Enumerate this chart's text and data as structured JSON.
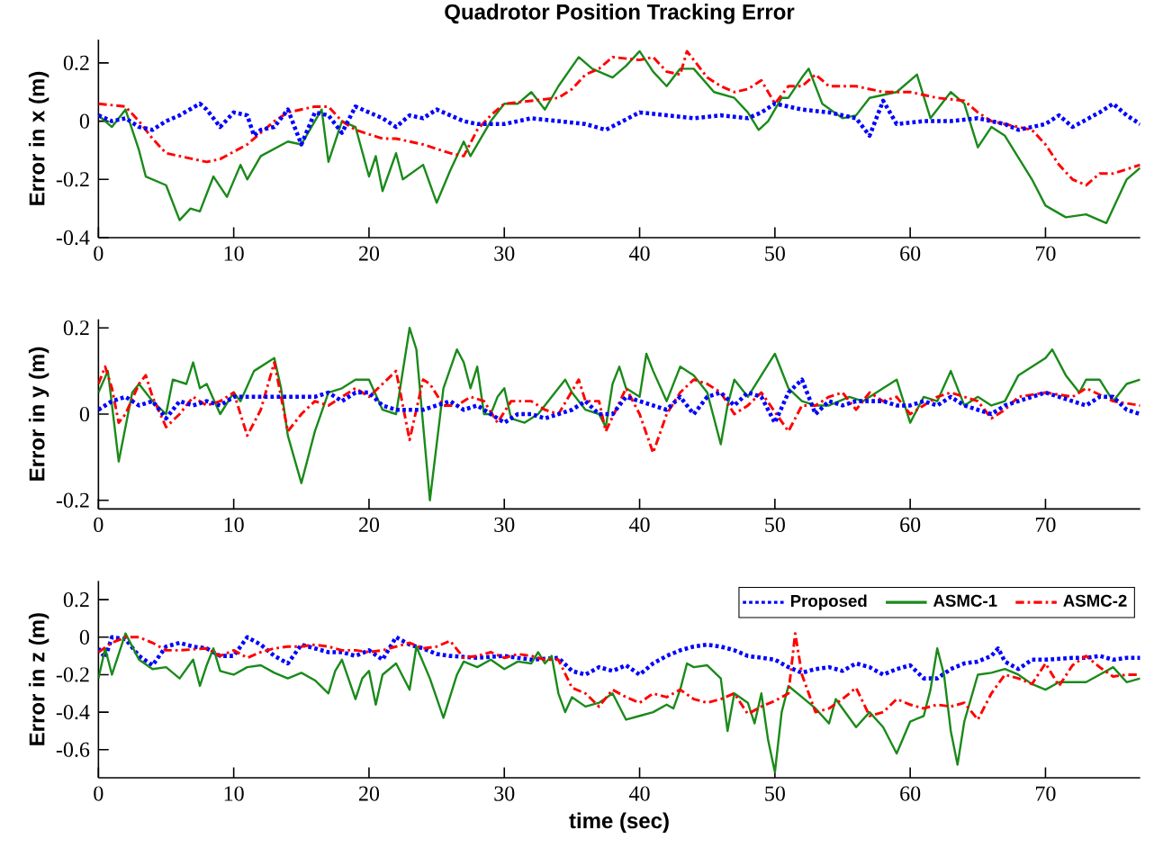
{
  "chart_data": [
    {
      "type": "line",
      "title": "Quadrotor Position Tracking Error",
      "ylabel": "Error in x (m)",
      "xlim": [
        0,
        77
      ],
      "ylim": [
        -0.4,
        0.28
      ],
      "xticks": [
        0,
        10,
        20,
        30,
        40,
        50,
        60,
        70
      ],
      "yticks": [
        -0.4,
        -0.2,
        0,
        0.2
      ],
      "series": [
        {
          "color": "#1a8a1a",
          "line_style": "solid",
          "x": [
            0,
            1,
            2,
            3,
            3.5,
            5,
            6,
            6.8,
            7.5,
            8.5,
            9.5,
            10.5,
            11,
            12,
            14,
            15,
            16.5,
            17,
            18,
            19,
            20,
            20.5,
            21,
            22,
            22.5,
            24,
            25,
            26,
            27,
            27.5,
            29,
            30,
            31,
            32,
            33,
            34,
            35.5,
            36.5,
            38,
            39,
            40,
            41,
            42,
            43,
            44,
            45.5,
            47,
            48,
            48.8,
            49.5,
            50.5,
            51,
            52,
            52.5,
            53.5,
            55,
            56,
            57,
            59,
            60.5,
            61.5,
            63,
            64,
            65,
            66,
            67,
            69,
            70,
            71.5,
            73,
            74.5,
            76,
            77
          ],
          "values": [
            0.02,
            -0.02,
            0.04,
            -0.1,
            -0.19,
            -0.22,
            -0.34,
            -0.3,
            -0.31,
            -0.19,
            -0.26,
            -0.15,
            -0.2,
            -0.12,
            -0.07,
            -0.08,
            0.04,
            -0.14,
            0.0,
            -0.02,
            -0.19,
            -0.12,
            -0.24,
            -0.11,
            -0.2,
            -0.15,
            -0.28,
            -0.17,
            -0.07,
            -0.12,
            0.0,
            0.06,
            0.06,
            0.1,
            0.04,
            0.12,
            0.22,
            0.18,
            0.15,
            0.19,
            0.24,
            0.17,
            0.12,
            0.18,
            0.18,
            0.1,
            0.08,
            0.03,
            -0.03,
            0.0,
            0.08,
            0.08,
            0.15,
            0.18,
            0.06,
            0.01,
            0.02,
            0.08,
            0.1,
            0.16,
            0.01,
            0.1,
            0.06,
            -0.09,
            -0.02,
            -0.05,
            -0.2,
            -0.29,
            -0.33,
            -0.32,
            -0.35,
            -0.2,
            -0.16
          ]
        },
        {
          "color": "#ff0000",
          "line_style": "dashed",
          "x": [
            0,
            2,
            3,
            4,
            5,
            6,
            8,
            9,
            11,
            13,
            14,
            16,
            17,
            18,
            19,
            21,
            22,
            24,
            26,
            27,
            28,
            29,
            30,
            32,
            34,
            35,
            36,
            37,
            38,
            40,
            41,
            42,
            43,
            43.5,
            44,
            45,
            46,
            47,
            48,
            49,
            50,
            51,
            52,
            53,
            54,
            56,
            58,
            60,
            62,
            64,
            65,
            66,
            68,
            69,
            70,
            71,
            72,
            73,
            74,
            75,
            77
          ],
          "values": [
            0.06,
            0.05,
            0.0,
            -0.06,
            -0.11,
            -0.12,
            -0.14,
            -0.13,
            -0.08,
            0.0,
            0.03,
            0.05,
            0.05,
            0.0,
            -0.03,
            -0.06,
            -0.06,
            -0.08,
            -0.11,
            -0.12,
            -0.03,
            0.02,
            0.06,
            0.07,
            0.08,
            0.11,
            0.16,
            0.18,
            0.22,
            0.21,
            0.22,
            0.17,
            0.16,
            0.24,
            0.21,
            0.15,
            0.12,
            0.1,
            0.11,
            0.14,
            0.06,
            0.12,
            0.12,
            0.16,
            0.12,
            0.12,
            0.1,
            0.1,
            0.08,
            0.07,
            0.03,
            0.0,
            -0.02,
            -0.03,
            -0.08,
            -0.15,
            -0.2,
            -0.22,
            -0.18,
            -0.18,
            -0.15
          ]
        },
        {
          "color": "#0000ff",
          "line_style": "dotted",
          "x": [
            0,
            1,
            2,
            3,
            4,
            5,
            6,
            7.5,
            8,
            9,
            10,
            11,
            11.5,
            12,
            13,
            14,
            15,
            16,
            17,
            18,
            19,
            20,
            21,
            22,
            23,
            24,
            25,
            26,
            27,
            28,
            30,
            32,
            34,
            36,
            37.5,
            40,
            42,
            44,
            46,
            48,
            49,
            50,
            52,
            54,
            56,
            57,
            58,
            59,
            61,
            63,
            65,
            67,
            68,
            70,
            71,
            72,
            74,
            75,
            76,
            77
          ],
          "values": [
            0.02,
            0.0,
            0.01,
            -0.02,
            -0.03,
            0.0,
            0.02,
            0.06,
            0.04,
            -0.02,
            0.03,
            0.02,
            -0.05,
            -0.03,
            -0.02,
            0.04,
            -0.08,
            0.03,
            0.02,
            -0.04,
            0.05,
            0.03,
            0.01,
            -0.02,
            0.02,
            0.01,
            0.04,
            0.02,
            0.0,
            -0.01,
            -0.01,
            0.01,
            0.0,
            -0.01,
            -0.03,
            0.03,
            0.02,
            0.01,
            0.02,
            0.01,
            0.03,
            0.06,
            0.04,
            0.03,
            0.01,
            -0.05,
            0.07,
            -0.01,
            0.0,
            0.0,
            0.01,
            -0.01,
            -0.03,
            -0.01,
            0.02,
            -0.02,
            0.03,
            0.06,
            0.02,
            -0.01
          ]
        }
      ]
    },
    {
      "type": "line",
      "ylabel": "Error in y (m)",
      "xlim": [
        0,
        77
      ],
      "ylim": [
        -0.22,
        0.22
      ],
      "xticks": [
        0,
        10,
        20,
        30,
        40,
        50,
        60,
        70
      ],
      "yticks": [
        -0.2,
        0,
        0.2
      ],
      "series": [
        {
          "color": "#1a8a1a",
          "line_style": "solid",
          "x": [
            0,
            0.7,
            1.5,
            2.5,
            3,
            4,
            5,
            5.5,
            6.5,
            7,
            7.5,
            8,
            9,
            10,
            10.5,
            11.5,
            12.5,
            13,
            13.5,
            14,
            15,
            16,
            17,
            18,
            19,
            20,
            21,
            22,
            23,
            23.5,
            24.5,
            25.5,
            26.5,
            27,
            27.5,
            28,
            28.5,
            29,
            29.5,
            30,
            30.5,
            31.5,
            32.5,
            33.5,
            34.5,
            35,
            36,
            37,
            37.5,
            38,
            38.5,
            39,
            40,
            40.5,
            41,
            42,
            43,
            44,
            45,
            46,
            46.5,
            47,
            48,
            50,
            51,
            52,
            53,
            54,
            55.5,
            56.5,
            58,
            59,
            60,
            61,
            62,
            63,
            64,
            65,
            66,
            67,
            68,
            70,
            70.5,
            71.5,
            72.5,
            73,
            74,
            75,
            76,
            77
          ],
          "values": [
            0.05,
            0.1,
            -0.11,
            0.05,
            0.07,
            0.03,
            0.0,
            0.08,
            0.07,
            0.12,
            0.06,
            0.07,
            0.0,
            0.05,
            0.03,
            0.1,
            0.12,
            0.13,
            0.06,
            -0.05,
            -0.16,
            -0.04,
            0.05,
            0.06,
            0.08,
            0.08,
            0.01,
            0.0,
            0.2,
            0.15,
            -0.2,
            0.06,
            0.15,
            0.12,
            0.06,
            0.11,
            0.0,
            0.0,
            0.04,
            0.06,
            -0.01,
            -0.02,
            0.0,
            0.04,
            0.08,
            0.05,
            0.01,
            0.0,
            -0.03,
            0.07,
            0.11,
            0.06,
            0.04,
            0.14,
            0.1,
            0.03,
            0.11,
            0.09,
            0.05,
            -0.07,
            0.02,
            0.08,
            0.04,
            0.14,
            0.06,
            0.03,
            0.02,
            0.02,
            0.04,
            0.03,
            0.06,
            0.08,
            -0.02,
            0.04,
            0.03,
            0.1,
            0.02,
            0.04,
            0.02,
            0.03,
            0.09,
            0.13,
            0.15,
            0.09,
            0.05,
            0.08,
            0.08,
            0.03,
            0.07,
            0.08
          ]
        },
        {
          "color": "#ff0000",
          "line_style": "dashed",
          "x": [
            0,
            0.5,
            1,
            1.5,
            2,
            3,
            3.5,
            4,
            5,
            6,
            7,
            8,
            9,
            10,
            11,
            12,
            13,
            14,
            15,
            16,
            17,
            18,
            19,
            20,
            21,
            22,
            23,
            24,
            24.5,
            25.5,
            26.5,
            27.5,
            28.5,
            29.5,
            30.5,
            32,
            33,
            34,
            35.5,
            36,
            37,
            37.5,
            39,
            40,
            41,
            42,
            43,
            44,
            45,
            46,
            47,
            48,
            49,
            51,
            52,
            53,
            54,
            55,
            56,
            57,
            58,
            59,
            60,
            62,
            63,
            65,
            66,
            67,
            68,
            70,
            72,
            73,
            75,
            77
          ],
          "values": [
            0.07,
            0.11,
            0.06,
            -0.02,
            0.0,
            0.07,
            0.09,
            0.04,
            -0.03,
            0.0,
            0.04,
            0.02,
            0.03,
            0.05,
            -0.05,
            0.01,
            0.12,
            -0.04,
            0.0,
            0.03,
            0.02,
            0.04,
            0.06,
            0.04,
            0.07,
            0.1,
            -0.06,
            0.08,
            0.07,
            0.02,
            0.02,
            0.04,
            0.03,
            -0.02,
            0.03,
            0.03,
            0.01,
            0.0,
            0.08,
            0.03,
            0.03,
            -0.04,
            0.06,
            0.0,
            -0.09,
            0.0,
            0.05,
            0.08,
            0.07,
            0.05,
            0.0,
            0.02,
            0.05,
            -0.04,
            0.02,
            0.02,
            0.04,
            0.05,
            0.01,
            0.05,
            0.03,
            0.04,
            0.0,
            0.04,
            0.05,
            0.03,
            -0.01,
            0.01,
            0.04,
            0.05,
            0.04,
            0.06,
            0.03,
            0.02
          ]
        },
        {
          "color": "#0000ff",
          "line_style": "dotted",
          "x": [
            0,
            1,
            2,
            3,
            4,
            5,
            6,
            7,
            8,
            9,
            10,
            12,
            14,
            16,
            17,
            18,
            19,
            20,
            21,
            22,
            24,
            25,
            26,
            27,
            28,
            29,
            30,
            31,
            32,
            33,
            34,
            35,
            36,
            37,
            38,
            39,
            40,
            41,
            42,
            43,
            44,
            45,
            46,
            47,
            48,
            49,
            50,
            51,
            52,
            53,
            54,
            55,
            56,
            57,
            58,
            59,
            60,
            61,
            62,
            63,
            64,
            65,
            66,
            67,
            68,
            70,
            71,
            72,
            73,
            74,
            75,
            76,
            77
          ],
          "values": [
            0.01,
            0.03,
            0.04,
            0.02,
            0.03,
            -0.01,
            0.03,
            0.02,
            0.03,
            0.02,
            0.04,
            0.04,
            0.04,
            0.04,
            0.05,
            0.03,
            0.05,
            0.05,
            0.02,
            0.01,
            0.01,
            0.02,
            0.03,
            0.01,
            0.02,
            0.0,
            -0.02,
            0.0,
            0.0,
            -0.01,
            0.0,
            0.01,
            0.03,
            0.0,
            0.0,
            0.04,
            0.03,
            0.02,
            0.01,
            0.04,
            0.0,
            0.04,
            0.05,
            0.02,
            0.05,
            0.04,
            -0.02,
            0.05,
            0.08,
            0.0,
            0.03,
            0.02,
            0.03,
            0.03,
            0.03,
            0.02,
            0.02,
            0.03,
            0.02,
            0.04,
            0.02,
            0.01,
            0.0,
            0.02,
            0.03,
            0.05,
            0.04,
            0.03,
            0.02,
            0.04,
            0.04,
            0.01,
            0.0
          ]
        }
      ]
    },
    {
      "type": "line",
      "xlabel": "time (sec)",
      "ylabel": "Error in z (m)",
      "xlim": [
        0,
        77
      ],
      "ylim": [
        -0.75,
        0.3
      ],
      "xticks": [
        0,
        10,
        20,
        30,
        40,
        50,
        60,
        70
      ],
      "yticks": [
        -0.6,
        -0.4,
        -0.2,
        0,
        0.2
      ],
      "legend": "top right",
      "series": [
        {
          "name": "Proposed",
          "color": "#0000ff",
          "line_style": "dotted",
          "x": [
            0,
            0.5,
            1,
            2,
            3,
            4,
            5,
            6,
            7,
            8,
            9,
            10,
            11,
            12,
            13,
            14,
            15,
            16,
            17,
            18,
            19,
            20,
            21,
            22,
            23,
            24,
            25,
            26,
            28,
            30,
            32,
            34,
            35,
            36,
            37,
            38,
            39,
            40,
            41,
            42,
            43,
            44,
            45,
            46,
            47,
            48,
            49,
            50,
            51,
            52,
            53,
            54,
            55,
            56,
            57,
            58,
            59,
            60,
            61,
            62,
            63,
            64,
            65,
            66,
            66.5,
            67,
            68,
            69,
            70,
            72,
            73,
            74,
            75,
            76,
            77
          ],
          "values": [
            -0.06,
            -0.11,
            0.0,
            -0.01,
            -0.1,
            -0.15,
            -0.05,
            -0.03,
            -0.05,
            -0.06,
            -0.1,
            -0.1,
            0.0,
            -0.04,
            -0.1,
            -0.14,
            -0.04,
            -0.06,
            -0.08,
            -0.08,
            -0.1,
            -0.07,
            -0.12,
            0.0,
            -0.04,
            -0.06,
            -0.09,
            -0.1,
            -0.11,
            -0.1,
            -0.12,
            -0.11,
            -0.18,
            -0.2,
            -0.16,
            -0.18,
            -0.15,
            -0.2,
            -0.14,
            -0.1,
            -0.07,
            -0.05,
            -0.04,
            -0.05,
            -0.07,
            -0.1,
            -0.11,
            -0.12,
            -0.16,
            -0.19,
            -0.17,
            -0.16,
            -0.18,
            -0.14,
            -0.16,
            -0.2,
            -0.17,
            -0.15,
            -0.22,
            -0.22,
            -0.17,
            -0.14,
            -0.13,
            -0.1,
            -0.06,
            -0.13,
            -0.17,
            -0.12,
            -0.12,
            -0.11,
            -0.11,
            -0.1,
            -0.12,
            -0.11,
            -0.11
          ]
        },
        {
          "name": "ASMC-1",
          "color": "#1a8a1a",
          "line_style": "solid",
          "x": [
            0,
            0.5,
            1,
            2,
            3,
            4,
            5,
            6,
            7,
            7.5,
            8,
            8.5,
            9,
            10,
            11,
            12,
            13,
            14,
            15,
            16,
            17,
            17.5,
            18,
            19,
            19.5,
            20,
            20.5,
            21,
            22,
            23,
            23.5,
            24.5,
            25.5,
            26.5,
            27,
            28,
            29,
            30,
            31,
            32,
            32.5,
            33,
            33.5,
            34,
            34.5,
            35,
            36,
            37,
            38,
            39,
            40,
            41,
            42,
            42.5,
            43,
            43.5,
            44,
            45,
            46,
            46.5,
            47,
            48,
            48.5,
            49,
            49.5,
            50,
            50.5,
            51,
            52,
            53,
            54,
            54.5,
            55,
            56,
            57,
            58,
            59,
            60,
            61,
            61.5,
            62,
            62.5,
            63,
            63.5,
            64,
            65,
            66,
            67,
            68,
            69,
            70,
            71,
            73,
            74,
            75,
            76,
            77
          ],
          "values": [
            -0.22,
            -0.06,
            -0.2,
            0.02,
            -0.12,
            -0.17,
            -0.16,
            -0.22,
            -0.12,
            -0.26,
            -0.15,
            -0.06,
            -0.18,
            -0.2,
            -0.16,
            -0.15,
            -0.19,
            -0.22,
            -0.19,
            -0.23,
            -0.3,
            -0.18,
            -0.12,
            -0.33,
            -0.22,
            -0.18,
            -0.36,
            -0.2,
            -0.14,
            -0.28,
            -0.05,
            -0.22,
            -0.43,
            -0.2,
            -0.13,
            -0.16,
            -0.12,
            -0.17,
            -0.13,
            -0.14,
            -0.08,
            -0.14,
            -0.1,
            -0.3,
            -0.4,
            -0.32,
            -0.37,
            -0.35,
            -0.3,
            -0.44,
            -0.42,
            -0.4,
            -0.36,
            -0.38,
            -0.28,
            -0.14,
            -0.16,
            -0.15,
            -0.22,
            -0.5,
            -0.3,
            -0.35,
            -0.46,
            -0.3,
            -0.55,
            -0.72,
            -0.4,
            -0.26,
            -0.32,
            -0.38,
            -0.46,
            -0.33,
            -0.38,
            -0.48,
            -0.4,
            -0.48,
            -0.62,
            -0.45,
            -0.42,
            -0.28,
            -0.06,
            -0.2,
            -0.5,
            -0.68,
            -0.45,
            -0.2,
            -0.19,
            -0.17,
            -0.2,
            -0.25,
            -0.28,
            -0.24,
            -0.24,
            -0.2,
            -0.16,
            -0.24,
            -0.22
          ]
        },
        {
          "name": "ASMC-2",
          "color": "#ff0000",
          "line_style": "dashed",
          "x": [
            0,
            1,
            2,
            3,
            4,
            5,
            6,
            8,
            9,
            10,
            11,
            12,
            13,
            14,
            15,
            16,
            17,
            18,
            19,
            20,
            21,
            22,
            23,
            24,
            25,
            26,
            27,
            28,
            29,
            30,
            31,
            32,
            33,
            34,
            35,
            36,
            37,
            38,
            39,
            40,
            41,
            42,
            43,
            44,
            45,
            46,
            47,
            48,
            49,
            50,
            51,
            51.5,
            52,
            53,
            54,
            55,
            56,
            57,
            58,
            59,
            60,
            61,
            62,
            63,
            64,
            65,
            66,
            67,
            68,
            69,
            70,
            71,
            72,
            73,
            74,
            75,
            76,
            77
          ],
          "values": [
            -0.08,
            -0.03,
            0.0,
            0.0,
            -0.03,
            -0.07,
            -0.07,
            -0.06,
            -0.1,
            -0.07,
            -0.11,
            -0.08,
            -0.06,
            -0.05,
            -0.05,
            -0.04,
            -0.05,
            -0.07,
            -0.07,
            -0.08,
            -0.07,
            -0.05,
            -0.03,
            -0.06,
            -0.05,
            -0.02,
            -0.11,
            -0.1,
            -0.08,
            -0.11,
            -0.09,
            -0.1,
            -0.12,
            -0.12,
            -0.27,
            -0.3,
            -0.37,
            -0.28,
            -0.32,
            -0.35,
            -0.3,
            -0.32,
            -0.28,
            -0.33,
            -0.35,
            -0.33,
            -0.3,
            -0.41,
            -0.37,
            -0.34,
            -0.3,
            0.02,
            -0.2,
            -0.4,
            -0.38,
            -0.33,
            -0.27,
            -0.42,
            -0.4,
            -0.33,
            -0.36,
            -0.38,
            -0.36,
            -0.37,
            -0.35,
            -0.44,
            -0.3,
            -0.2,
            -0.22,
            -0.25,
            -0.14,
            -0.26,
            -0.15,
            -0.1,
            -0.16,
            -0.21,
            -0.2,
            -0.2
          ]
        }
      ]
    }
  ]
}
